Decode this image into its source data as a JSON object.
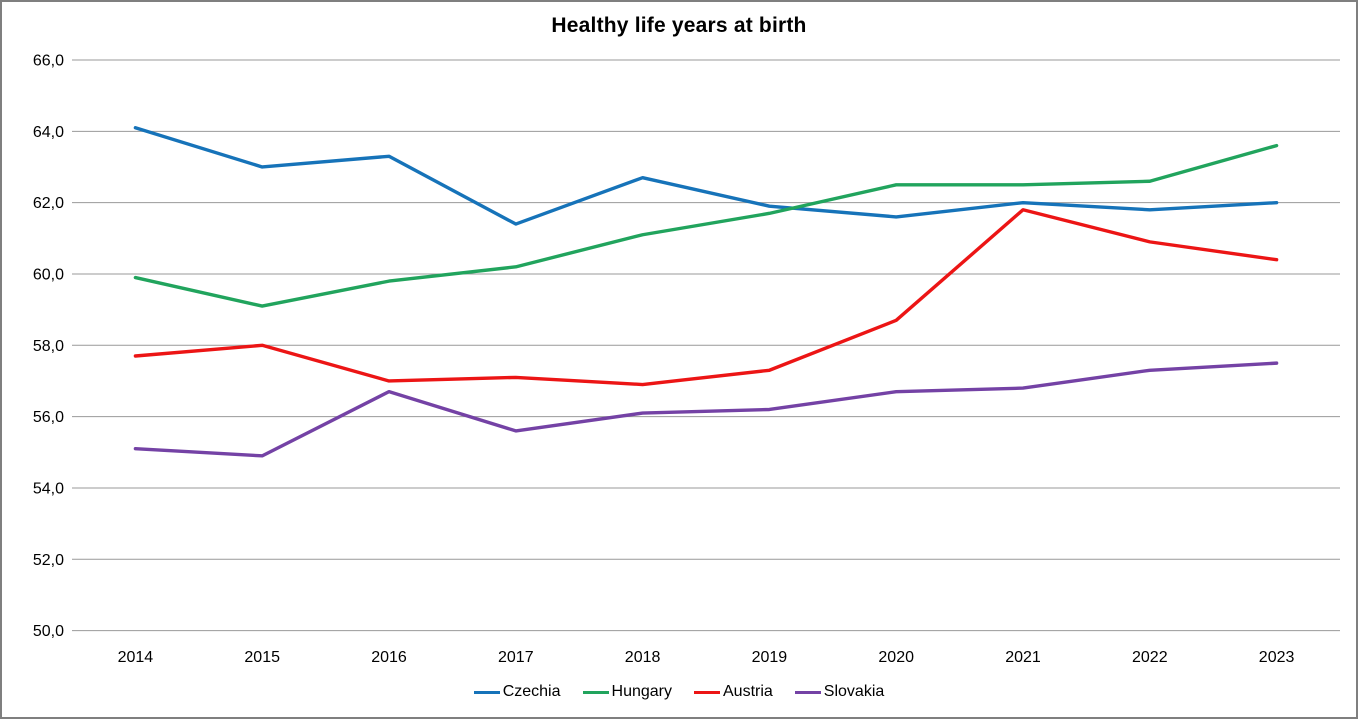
{
  "title": "Healthy life years at birth",
  "chart_data": {
    "type": "line",
    "title": "Healthy life years at birth",
    "categories": [
      "2014",
      "2015",
      "2016",
      "2017",
      "2018",
      "2019",
      "2020",
      "2021",
      "2022",
      "2023"
    ],
    "series": [
      {
        "name": "Czechia",
        "color": "#1673B9",
        "values": [
          64.1,
          63.0,
          63.3,
          61.4,
          62.7,
          61.9,
          61.6,
          62.0,
          61.8,
          62.0
        ]
      },
      {
        "name": "Hungary",
        "color": "#21A45D",
        "values": [
          59.9,
          59.1,
          59.8,
          60.2,
          61.1,
          61.7,
          62.5,
          62.5,
          62.6,
          63.6
        ]
      },
      {
        "name": "Austria",
        "color": "#EC1515",
        "values": [
          57.7,
          58.0,
          57.0,
          57.1,
          56.9,
          57.3,
          58.7,
          61.8,
          60.9,
          60.4
        ]
      },
      {
        "name": "Slovakia",
        "color": "#7442A5",
        "values": [
          55.1,
          54.9,
          56.7,
          55.6,
          56.1,
          56.2,
          56.7,
          56.8,
          57.3,
          57.5
        ]
      }
    ],
    "ylim": [
      50.0,
      66.0
    ],
    "ytick_step": 2.0,
    "decimal_separator": ",",
    "grid": true,
    "gridline_color": "#999999",
    "frame_border_color": "#7F7F7F",
    "legend_position": "bottom",
    "xlabel": "",
    "ylabel": ""
  }
}
